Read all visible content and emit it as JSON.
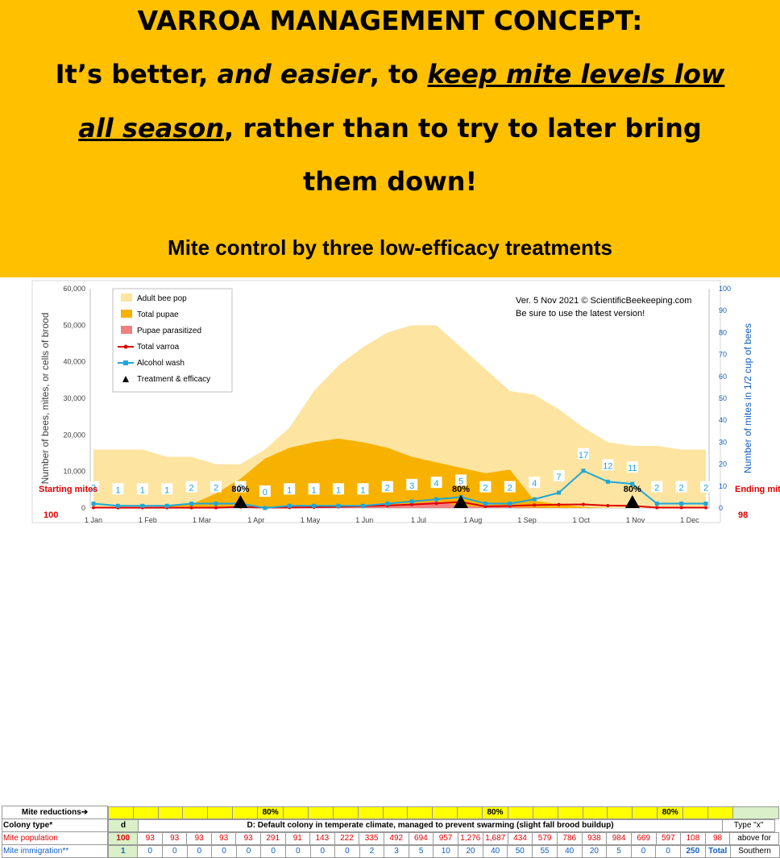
{
  "header": {
    "title": "VARROA MANAGEMENT CONCEPT:",
    "line2_a": "It’s better, ",
    "line2_b": "and easier",
    "line2_c": ", to ",
    "line2_d": "keep mite levels low",
    "line3_a": "all season",
    "line3_b": ", rather than to try to later bring",
    "line4": "them down!",
    "subtitle": "Mite control by three low-efficacy treatments"
  },
  "colors": {
    "banner": "#FFC000",
    "adult_bee_pop": "#FDE4A0",
    "total_pupae": "#F7B200",
    "pupae_parasitized": "#F08080",
    "total_varroa": "#E00000",
    "alcohol_wash": "#1FA6D8",
    "treatment": "#000000"
  },
  "chart_data": {
    "type": "area",
    "version_note_1": "Ver. 5 Nov 2021 © ScientificBeekeeping.com",
    "version_note_2": "Be sure to use the latest version!",
    "ylabel_left": "Number of bees, mites, or cells of brood",
    "ylabel_right": "Number of mites in 1/2 cup of bees",
    "ylim_left": [
      0,
      60000
    ],
    "ylim_right": [
      0,
      100
    ],
    "yticks_left": [
      "0",
      "10,000",
      "20,000",
      "30,000",
      "40,000",
      "50,000",
      "60,000"
    ],
    "yticks_right": [
      "0",
      "10",
      "20",
      "30",
      "40",
      "50",
      "60",
      "70",
      "80",
      "90",
      "100"
    ],
    "xticks": [
      "1 Jan",
      "1 Feb",
      "1 Mar",
      "1 Apr",
      "1 May",
      "1 Jun",
      "1 Jul",
      "1 Aug",
      "1 Sep",
      "1 Oct",
      "1 Nov",
      "1 Dec"
    ],
    "legend": [
      "Adult bee pop",
      "Total pupae",
      "Pupae parasitized",
      "Total varroa",
      "Alcohol wash",
      "Treatment & efficacy"
    ],
    "legend_position": "top-left",
    "grid": false,
    "periods": 26,
    "adult_bee_pop": [
      16000,
      16000,
      16000,
      14000,
      14000,
      12000,
      12000,
      16000,
      22000,
      32000,
      39000,
      44000,
      48000,
      50000,
      50000,
      44000,
      38000,
      32000,
      31000,
      27000,
      22000,
      18000,
      17000,
      17000,
      16000,
      16000
    ],
    "total_pupae": [
      0,
      0,
      0,
      500,
      1000,
      4000,
      8000,
      13500,
      16500,
      18000,
      19000,
      18000,
      16500,
      14000,
      12500,
      11000,
      9500,
      10500,
      2000,
      1000,
      300,
      0,
      0,
      0,
      0,
      0
    ],
    "pupae_parasitized": [
      0,
      0,
      0,
      0,
      0,
      100,
      200,
      100,
      100,
      200,
      300,
      500,
      800,
      1200,
      1800,
      500,
      300,
      300,
      100,
      50,
      0,
      0,
      0,
      0,
      0,
      0
    ],
    "total_varroa": [
      100,
      93,
      93,
      93,
      93,
      93,
      291,
      91,
      143,
      222,
      335,
      492,
      694,
      957,
      1276,
      1687,
      434,
      579,
      786,
      938,
      984,
      669,
      597,
      108,
      98,
      98
    ],
    "alcohol_wash": [
      2,
      1,
      1,
      1,
      2,
      2,
      2,
      0,
      1,
      1,
      1,
      1,
      2,
      3,
      4,
      5,
      2,
      2,
      4,
      7,
      17,
      12,
      11,
      2,
      2,
      2
    ],
    "alcohol_wash_labels": [
      "2",
      "1",
      "1",
      "1",
      "2",
      "2",
      "2",
      "0",
      "1",
      "1",
      "1",
      "1",
      "2",
      "3",
      "4",
      "5",
      "2",
      "2",
      "4",
      "7",
      "17",
      "12",
      "11",
      "2",
      "2",
      "2"
    ],
    "treatments": [
      {
        "period": 6,
        "efficacy": "80%"
      },
      {
        "period": 15,
        "efficacy": "80%"
      },
      {
        "period": 22,
        "efficacy": "80%"
      }
    ],
    "starting_label": "Starting mites",
    "starting_value": "100",
    "ending_label": "Ending mites",
    "ending_value": "98"
  },
  "grid": {
    "mite_reductions_label": "Mite reductions➔",
    "reductions": [
      "",
      "",
      "",
      "",
      "",
      "",
      "80%",
      "",
      "",
      "",
      "",
      "",
      "",
      "",
      "",
      "80%",
      "",
      "",
      "",
      "",
      "",
      "",
      "80%",
      "",
      ""
    ],
    "colony_type_label": "Colony type*",
    "colony_type_value": "d",
    "colony_desc": "D: Default colony in temperate climate, managed to prevent swarming (slight fall brood buildup)",
    "type_note_1": "Type \"x\"",
    "type_note_2": "above for",
    "type_note_3": "Southern",
    "mite_population_label": "Mite population",
    "mite_population_start": "100",
    "mite_population": [
      "93",
      "93",
      "93",
      "93",
      "93",
      "291",
      "91",
      "143",
      "222",
      "335",
      "492",
      "694",
      "957",
      "1,276",
      "1,687",
      "434",
      "579",
      "786",
      "938",
      "984",
      "669",
      "597",
      "108",
      "98"
    ],
    "mite_immigration_label": "Mite immigration**",
    "mite_immigration_start": "1",
    "mite_immigration": [
      "0",
      "0",
      "0",
      "0",
      "0",
      "0",
      "0",
      "0",
      "0",
      "2",
      "3",
      "5",
      "10",
      "20",
      "40",
      "50",
      "55",
      "40",
      "20",
      "5",
      "0",
      "0"
    ],
    "mite_immigration_total": "250",
    "total_label": "Total"
  }
}
